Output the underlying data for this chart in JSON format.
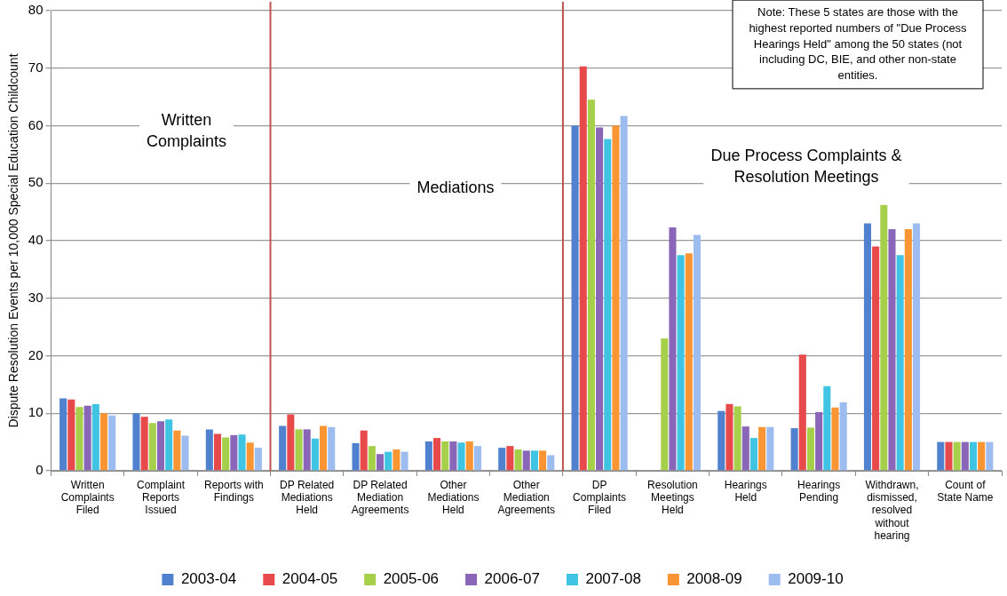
{
  "chart_data": {
    "type": "bar",
    "ylabel": "Dispute Resolution Events per 10,000 Special Education Childcount",
    "categories": [
      "Written Complaints Filed",
      "Complaint Reports Issued",
      "Reports with Findings",
      "DP Related Mediations Held",
      "DP Related Mediation Agreements",
      "Other Mediations Held",
      "Other Mediation Agreements",
      "DP Complaints Filed",
      "Resolution Meetings Held",
      "Hearings Held",
      "Hearings Pending",
      "Withdrawn, dismissed, resolved without hearing",
      "Count of State Name"
    ],
    "series": [
      {
        "name": "2003-04",
        "color": "#4f81cf",
        "values": [
          12.6,
          10.0,
          7.2,
          7.8,
          4.8,
          5.1,
          4.0,
          60,
          null,
          10.4,
          7.4,
          43,
          5
        ]
      },
      {
        "name": "2004-05",
        "color": "#e8494a",
        "values": [
          12.4,
          9.4,
          6.4,
          9.8,
          7.0,
          5.7,
          4.3,
          70.3,
          null,
          11.6,
          20.2,
          39,
          5
        ]
      },
      {
        "name": "2005-06",
        "color": "#a6cf4a",
        "values": [
          11.1,
          8.3,
          5.8,
          7.2,
          4.3,
          5.1,
          3.7,
          64.5,
          23,
          11.2,
          7.5,
          46.2,
          5
        ]
      },
      {
        "name": "2006-07",
        "color": "#8a66b8",
        "values": [
          11.3,
          8.6,
          6.2,
          7.2,
          2.9,
          5.1,
          3.5,
          59.7,
          42.3,
          7.7,
          10.2,
          42,
          5
        ]
      },
      {
        "name": "2007-08",
        "color": "#40c4e4",
        "values": [
          11.6,
          8.9,
          6.3,
          5.6,
          3.3,
          4.9,
          3.5,
          57.7,
          37.5,
          5.7,
          14.7,
          37.5,
          5
        ]
      },
      {
        "name": "2008-09",
        "color": "#fa9533",
        "values": [
          10.0,
          7.0,
          4.9,
          7.8,
          3.7,
          5.1,
          3.5,
          60,
          37.8,
          7.6,
          11,
          42,
          5
        ]
      },
      {
        "name": "2009-10",
        "color": "#9dbdf0",
        "values": [
          9.6,
          6.1,
          4.0,
          7.6,
          3.3,
          4.3,
          2.7,
          61.7,
          41,
          7.6,
          11.9,
          43,
          5
        ]
      }
    ],
    "ylim": [
      0,
      80
    ],
    "yticks": [
      0,
      10,
      20,
      30,
      40,
      50,
      60,
      70,
      80
    ],
    "grid": "y",
    "legend": "bottom",
    "annotations": [
      "Written Complaints",
      "Mediations",
      "Due Process Complaints & Resolution Meetings",
      "Note: These 5 states are those with the highest reported numbers of \"Due Process Hearings Held\" among the 50 states (not including DC, BIE, and other non-state entities."
    ]
  }
}
